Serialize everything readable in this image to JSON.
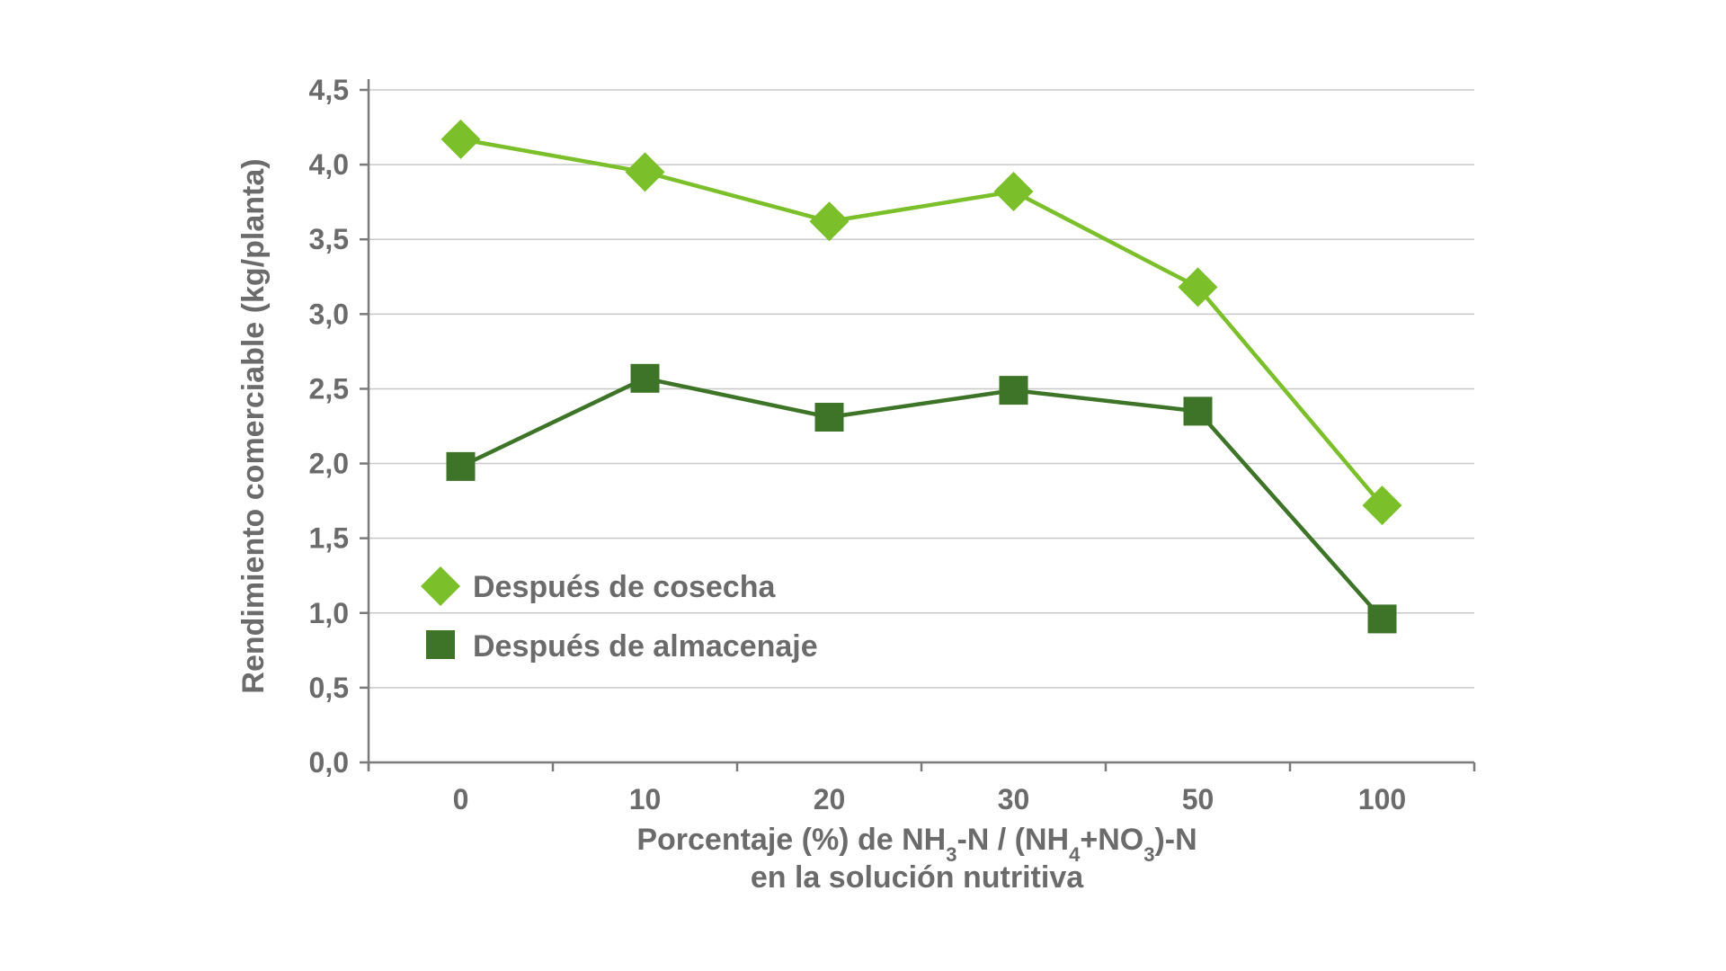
{
  "chart_data": {
    "type": "line",
    "title": "",
    "ylabel": "Rendimiento comerciable (kg/planta)",
    "xlabel": {
      "prefix": "Porcentaje (%) de NH",
      "sub1": "3",
      "mid1": "-N / (NH",
      "sub2": "4",
      "mid2": "+NO",
      "sub3": "3",
      "suffix": ")-N",
      "line2": "en la solución nutritiva"
    },
    "categories": [
      "0",
      "10",
      "20",
      "30",
      "50",
      "100"
    ],
    "ylim": [
      0,
      4.5
    ],
    "yticks": [
      0,
      0.5,
      1.0,
      1.5,
      2.0,
      2.5,
      3.0,
      3.5,
      4.0,
      4.5
    ],
    "ytick_labels": [
      "0,0",
      "0,5",
      "1,0",
      "1,5",
      "2,0",
      "2,5",
      "3,0",
      "3,5",
      "4,0",
      "4,5"
    ],
    "grid": true,
    "legend_position": "lower-left",
    "series": [
      {
        "name": "Después de cosecha",
        "marker": "diamond",
        "color": "#7bbf2a",
        "values": [
          4.17,
          3.95,
          3.62,
          3.82,
          3.18,
          1.72
        ]
      },
      {
        "name": "Después de almacenaje",
        "marker": "square",
        "color": "#3d7428",
        "values": [
          1.98,
          2.57,
          2.31,
          2.49,
          2.35,
          0.96
        ]
      }
    ]
  }
}
